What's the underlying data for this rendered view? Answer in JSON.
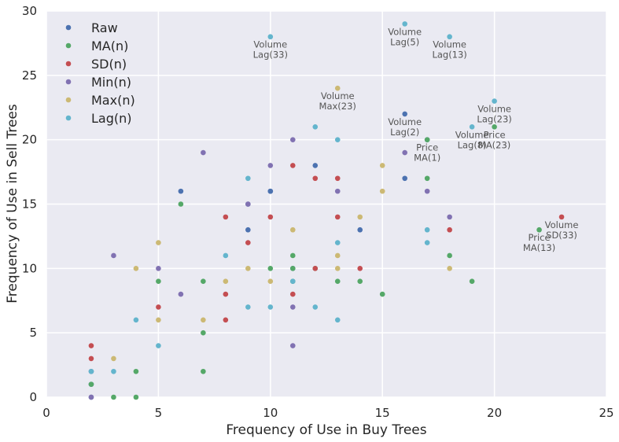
{
  "chart_data": {
    "type": "scatter",
    "xlabel": "Frequency of Use in Buy Trees",
    "ylabel": "Frequency of Use in Sell Trees",
    "xlim": [
      0,
      25
    ],
    "ylim": [
      0,
      30
    ],
    "xticks": [
      0,
      5,
      10,
      15,
      20,
      25
    ],
    "yticks": [
      0,
      5,
      10,
      15,
      20,
      25,
      30
    ],
    "grid": true,
    "legend_position": "top-left",
    "series": [
      {
        "name": "Raw",
        "color": "#4c72b0",
        "points": [
          [
            2,
            0
          ],
          [
            2,
            1
          ],
          [
            2,
            2
          ],
          [
            6,
            16
          ],
          [
            9,
            15
          ],
          [
            9,
            13
          ],
          [
            10,
            16
          ],
          [
            11,
            10
          ],
          [
            12,
            18
          ],
          [
            14,
            13
          ],
          [
            16,
            17
          ],
          [
            16,
            22
          ],
          [
            17,
            20
          ],
          [
            10,
            16
          ]
        ]
      },
      {
        "name": "MA(n)",
        "color": "#55a868",
        "points": [
          [
            2,
            1
          ],
          [
            3,
            0
          ],
          [
            4,
            0
          ],
          [
            4,
            2
          ],
          [
            5,
            9
          ],
          [
            6,
            15
          ],
          [
            7,
            9
          ],
          [
            7,
            5
          ],
          [
            7,
            2
          ],
          [
            10,
            10
          ],
          [
            11,
            10
          ],
          [
            11,
            11
          ],
          [
            11,
            9
          ],
          [
            12,
            10
          ],
          [
            13,
            9
          ],
          [
            14,
            9
          ],
          [
            15,
            8
          ],
          [
            17,
            20
          ],
          [
            17,
            17
          ],
          [
            18,
            11
          ],
          [
            19,
            9
          ],
          [
            20,
            21
          ],
          [
            22,
            13
          ]
        ]
      },
      {
        "name": "SD(n)",
        "color": "#c44e52",
        "points": [
          [
            2,
            4
          ],
          [
            2,
            3
          ],
          [
            5,
            7
          ],
          [
            8,
            14
          ],
          [
            8,
            8
          ],
          [
            8,
            6
          ],
          [
            9,
            12
          ],
          [
            10,
            14
          ],
          [
            11,
            18
          ],
          [
            11,
            8
          ],
          [
            12,
            17
          ],
          [
            12,
            10
          ],
          [
            13,
            17
          ],
          [
            13,
            14
          ],
          [
            14,
            10
          ],
          [
            18,
            13
          ],
          [
            23,
            14
          ]
        ]
      },
      {
        "name": "Min(n)",
        "color": "#8172b2",
        "points": [
          [
            2,
            0
          ],
          [
            3,
            11
          ],
          [
            5,
            10
          ],
          [
            6,
            8
          ],
          [
            7,
            19
          ],
          [
            9,
            15
          ],
          [
            10,
            18
          ],
          [
            11,
            20
          ],
          [
            11,
            7
          ],
          [
            11,
            4
          ],
          [
            13,
            16
          ],
          [
            16,
            19
          ],
          [
            17,
            16
          ],
          [
            18,
            14
          ]
        ]
      },
      {
        "name": "Max(n)",
        "color": "#ccb974",
        "points": [
          [
            3,
            3
          ],
          [
            4,
            10
          ],
          [
            5,
            12
          ],
          [
            5,
            6
          ],
          [
            7,
            6
          ],
          [
            8,
            9
          ],
          [
            9,
            10
          ],
          [
            10,
            9
          ],
          [
            11,
            13
          ],
          [
            13,
            24
          ],
          [
            13,
            11
          ],
          [
            13,
            10
          ],
          [
            14,
            14
          ],
          [
            15,
            18
          ],
          [
            15,
            16
          ],
          [
            18,
            10
          ]
        ]
      },
      {
        "name": "Lag(n)",
        "color": "#64b5cd",
        "points": [
          [
            2,
            2
          ],
          [
            3,
            2
          ],
          [
            4,
            6
          ],
          [
            5,
            4
          ],
          [
            8,
            11
          ],
          [
            9,
            17
          ],
          [
            9,
            7
          ],
          [
            10,
            28
          ],
          [
            10,
            7
          ],
          [
            11,
            9
          ],
          [
            12,
            21
          ],
          [
            12,
            7
          ],
          [
            13,
            20
          ],
          [
            13,
            12
          ],
          [
            13,
            6
          ],
          [
            16,
            29
          ],
          [
            17,
            13
          ],
          [
            17,
            12
          ],
          [
            18,
            28
          ],
          [
            19,
            21
          ],
          [
            20,
            23
          ]
        ]
      }
    ],
    "annotations": [
      {
        "x": 10,
        "y": 28,
        "lines": [
          "Volume",
          "Lag(33)"
        ]
      },
      {
        "x": 16,
        "y": 29,
        "lines": [
          "Volume",
          "Lag(5)"
        ]
      },
      {
        "x": 18,
        "y": 28,
        "lines": [
          "Volume",
          "Lag(13)"
        ]
      },
      {
        "x": 13,
        "y": 24,
        "lines": [
          "Volume",
          "Max(23)"
        ]
      },
      {
        "x": 16,
        "y": 22,
        "lines": [
          "Volume",
          "Lag(2)"
        ]
      },
      {
        "x": 20,
        "y": 23,
        "lines": [
          "Volume",
          "Lag(23)"
        ]
      },
      {
        "x": 19,
        "y": 21,
        "lines": [
          "Volume",
          "Lag(8)"
        ]
      },
      {
        "x": 20,
        "y": 21,
        "lines": [
          "Price",
          "MA(23)"
        ]
      },
      {
        "x": 17,
        "y": 20,
        "lines": [
          "Price",
          "MA(1)"
        ]
      },
      {
        "x": 23,
        "y": 14,
        "lines": [
          "Volume",
          "SD(33)"
        ]
      },
      {
        "x": 22,
        "y": 13,
        "lines": [
          "Price",
          "MA(13)"
        ]
      }
    ]
  }
}
